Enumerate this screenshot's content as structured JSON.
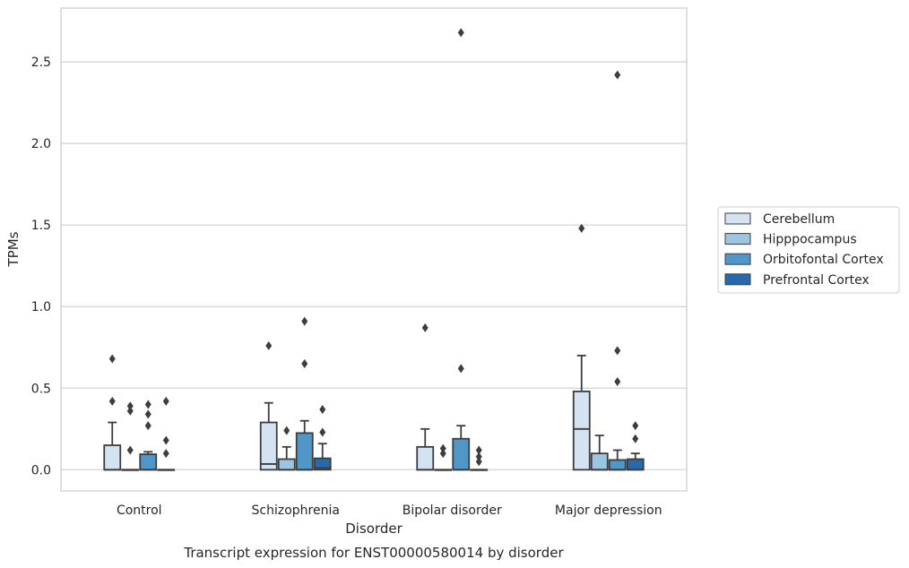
{
  "chart_data": {
    "type": "box",
    "caption": "Transcript expression for ENST00000580014 by disorder",
    "xlabel": "Disorder",
    "ylabel": "TPMs",
    "ylim": [
      -0.13,
      2.83
    ],
    "yticks": [
      "0.0",
      "0.5",
      "1.0",
      "1.5",
      "2.0",
      "2.5"
    ],
    "ytick_values": [
      0.0,
      0.5,
      1.0,
      1.5,
      2.0,
      2.5
    ],
    "grid": "horizontal",
    "legend_position": "right",
    "categories": [
      "Control",
      "Schizophrenia",
      "Bipolar disorder",
      "Major depression"
    ],
    "series": [
      {
        "name": "Cerebellum",
        "color": "#d4e3f2",
        "boxes": [
          {
            "q1": 0.0,
            "median": 0.0,
            "q3": 0.15,
            "whisker_low": 0.0,
            "whisker_high": 0.29,
            "outliers": [
              0.42,
              0.68
            ]
          },
          {
            "q1": 0.0,
            "median": 0.035,
            "q3": 0.29,
            "whisker_low": 0.0,
            "whisker_high": 0.41,
            "outliers": [
              0.76
            ]
          },
          {
            "q1": 0.0,
            "median": 0.0,
            "q3": 0.14,
            "whisker_low": 0.0,
            "whisker_high": 0.25,
            "outliers": [
              0.87
            ]
          },
          {
            "q1": 0.0,
            "median": 0.25,
            "q3": 0.48,
            "whisker_low": 0.0,
            "whisker_high": 0.7,
            "outliers": [
              1.48
            ]
          }
        ]
      },
      {
        "name": "Hipppocampus",
        "color": "#9cc5e0",
        "boxes": [
          {
            "q1": 0.0,
            "median": 0.0,
            "q3": 0.0,
            "whisker_low": 0.0,
            "whisker_high": 0.0,
            "outliers": [
              0.12,
              0.36,
              0.39
            ]
          },
          {
            "q1": 0.0,
            "median": 0.0,
            "q3": 0.065,
            "whisker_low": 0.0,
            "whisker_high": 0.14,
            "outliers": [
              0.24
            ]
          },
          {
            "q1": 0.0,
            "median": 0.0,
            "q3": 0.0,
            "whisker_low": 0.0,
            "whisker_high": 0.0,
            "outliers": [
              0.1,
              0.13
            ]
          },
          {
            "q1": 0.0,
            "median": 0.0,
            "q3": 0.1,
            "whisker_low": 0.0,
            "whisker_high": 0.21,
            "outliers": []
          }
        ]
      },
      {
        "name": "Orbitofontal Cortex",
        "color": "#5096c6",
        "boxes": [
          {
            "q1": 0.0,
            "median": 0.0,
            "q3": 0.095,
            "whisker_low": 0.0,
            "whisker_high": 0.11,
            "outliers": [
              0.27,
              0.34,
              0.4
            ]
          },
          {
            "q1": 0.0,
            "median": 0.0,
            "q3": 0.225,
            "whisker_low": 0.0,
            "whisker_high": 0.3,
            "outliers": [
              0.65,
              0.91
            ]
          },
          {
            "q1": 0.0,
            "median": 0.0,
            "q3": 0.19,
            "whisker_low": 0.0,
            "whisker_high": 0.27,
            "outliers": [
              0.62,
              2.68
            ]
          },
          {
            "q1": 0.0,
            "median": 0.0,
            "q3": 0.06,
            "whisker_low": 0.0,
            "whisker_high": 0.12,
            "outliers": [
              0.54,
              0.73,
              2.42
            ]
          }
        ]
      },
      {
        "name": "Prefrontal Cortex",
        "color": "#2769aa",
        "boxes": [
          {
            "q1": 0.0,
            "median": 0.0,
            "q3": 0.0,
            "whisker_low": 0.0,
            "whisker_high": 0.0,
            "outliers": [
              0.1,
              0.18,
              0.42
            ]
          },
          {
            "q1": 0.0,
            "median": 0.01,
            "q3": 0.07,
            "whisker_low": 0.0,
            "whisker_high": 0.16,
            "outliers": [
              0.23,
              0.37
            ]
          },
          {
            "q1": 0.0,
            "median": 0.0,
            "q3": 0.0,
            "whisker_low": 0.0,
            "whisker_high": 0.0,
            "outliers": [
              0.05,
              0.08,
              0.12
            ]
          },
          {
            "q1": 0.0,
            "median": 0.0,
            "q3": 0.065,
            "whisker_low": 0.0,
            "whisker_high": 0.1,
            "outliers": [
              0.19,
              0.27
            ]
          }
        ]
      }
    ]
  }
}
